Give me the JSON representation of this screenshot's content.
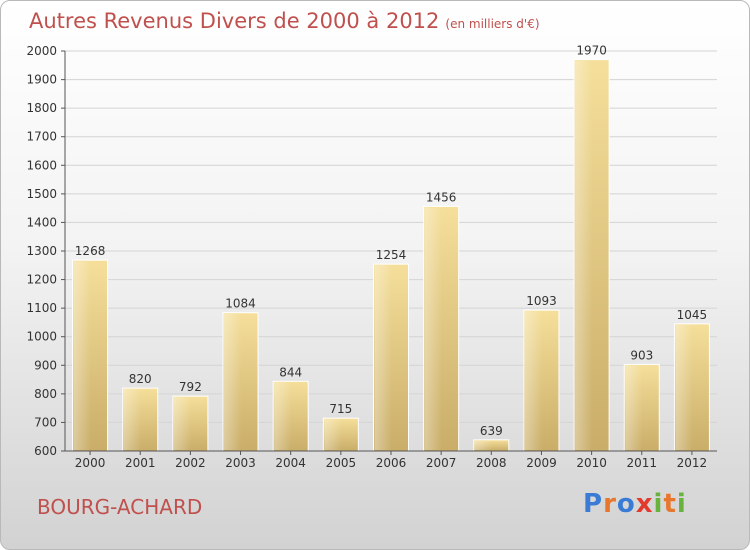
{
  "title": "Autres Revenus Divers de 2000 à 2012",
  "subtitle": "(en milliers d'€)",
  "location": "BOURG-ACHARD",
  "logo": "Proxiti",
  "chart_data": {
    "type": "bar",
    "categories": [
      "2000",
      "2001",
      "2002",
      "2003",
      "2004",
      "2005",
      "2006",
      "2007",
      "2008",
      "2009",
      "2010",
      "2011",
      "2012"
    ],
    "values": [
      1268,
      820,
      792,
      1084,
      844,
      715,
      1254,
      1456,
      639,
      1093,
      1970,
      903,
      1045
    ],
    "ylim": [
      600,
      2000
    ],
    "yticks": [
      600,
      700,
      800,
      900,
      1000,
      1100,
      1200,
      1300,
      1400,
      1500,
      1600,
      1700,
      1800,
      1900,
      2000
    ],
    "grid": true,
    "bar_color": "#e6cd85"
  }
}
